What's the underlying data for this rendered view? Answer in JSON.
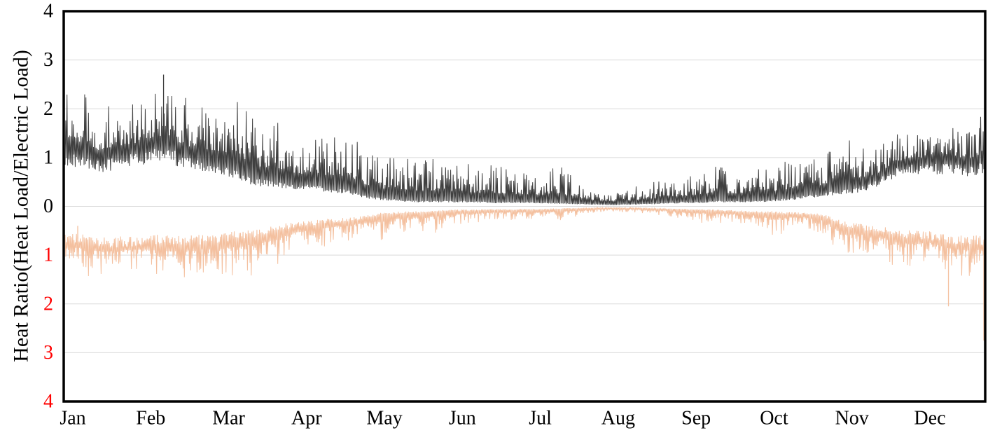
{
  "chart_data": {
    "type": "line",
    "title": "",
    "xlabel": "",
    "ylabel": "Heat Ratio(Heat Load/Electric Load)",
    "x_tick_labels": [
      "Jan",
      "Feb",
      "Mar",
      "Apr",
      "May",
      "Jun",
      "Jul",
      "Aug",
      "Sep",
      "Oct",
      "Nov",
      "Dec"
    ],
    "y_ticks_upper": [
      "4",
      "3",
      "2",
      "1",
      "0"
    ],
    "y_ticks_lower": [
      "1",
      "2",
      "3",
      "4"
    ],
    "ylim_upper": [
      0,
      4
    ],
    "ylim_lower": [
      0,
      4
    ],
    "lower_axis_inverted": true,
    "grid": "horizontal",
    "legend": "none",
    "colors": {
      "upper_series": "#404040",
      "lower_series": "#F4C09F",
      "upper_tick_labels": "#000000",
      "lower_tick_labels": "#FF0000",
      "gridline": "#D9D9D9",
      "frame": "#000000"
    },
    "x": [
      "Jan 1",
      "Jan 8",
      "Jan 15",
      "Jan 22",
      "Jan 29",
      "Feb 5",
      "Feb 12",
      "Feb 19",
      "Feb 26",
      "Mar 5",
      "Mar 12",
      "Mar 19",
      "Mar 26",
      "Apr 2",
      "Apr 9",
      "Apr 16",
      "Apr 23",
      "Apr 30",
      "May 7",
      "May 14",
      "May 21",
      "May 28",
      "Jun 4",
      "Jun 11",
      "Jun 18",
      "Jun 25",
      "Jul 2",
      "Jul 9",
      "Jul 16",
      "Jul 23",
      "Jul 30",
      "Aug 6",
      "Aug 13",
      "Aug 20",
      "Aug 27",
      "Sep 3",
      "Sep 10",
      "Sep 17",
      "Sep 24",
      "Oct 1",
      "Oct 8",
      "Oct 15",
      "Oct 22",
      "Oct 29",
      "Nov 5",
      "Nov 12",
      "Nov 19",
      "Nov 26",
      "Dec 3",
      "Dec 10",
      "Dec 17",
      "Dec 24",
      "Dec 31"
    ],
    "series": [
      {
        "axis": "upper",
        "low": [
          1.0,
          0.95,
          0.85,
          0.9,
          1.0,
          1.1,
          1.05,
          0.9,
          0.85,
          0.75,
          0.6,
          0.5,
          0.45,
          0.4,
          0.4,
          0.35,
          0.3,
          0.2,
          0.15,
          0.12,
          0.1,
          0.1,
          0.1,
          0.1,
          0.08,
          0.08,
          0.08,
          0.07,
          0.06,
          0.05,
          0.04,
          0.03,
          0.04,
          0.05,
          0.06,
          0.08,
          0.08,
          0.1,
          0.1,
          0.1,
          0.12,
          0.15,
          0.2,
          0.25,
          0.3,
          0.35,
          0.5,
          0.7,
          0.8,
          0.8,
          0.8,
          0.75,
          0.8
        ],
        "high": [
          2.3,
          2.45,
          2.0,
          2.2,
          2.2,
          2.35,
          2.35,
          2.2,
          2.1,
          2.25,
          2.1,
          1.75,
          1.8,
          1.4,
          1.6,
          1.45,
          1.6,
          1.2,
          1.0,
          1.05,
          1.0,
          1.0,
          0.95,
          0.85,
          0.85,
          0.8,
          0.75,
          0.75,
          0.85,
          0.55,
          0.4,
          0.3,
          0.4,
          0.45,
          0.6,
          0.6,
          0.75,
          0.85,
          0.75,
          0.85,
          0.9,
          0.95,
          0.95,
          1.05,
          1.45,
          1.25,
          1.2,
          1.5,
          1.6,
          1.55,
          1.85,
          1.6,
          1.9
        ],
        "spikes": [
          {
            "x": "Feb 9",
            "y": 2.7
          }
        ]
      },
      {
        "axis": "lower",
        "low": [
          0.7,
          0.65,
          0.75,
          0.75,
          0.75,
          0.7,
          0.7,
          0.7,
          0.7,
          0.65,
          0.6,
          0.55,
          0.45,
          0.4,
          0.35,
          0.3,
          0.28,
          0.22,
          0.15,
          0.13,
          0.12,
          0.1,
          0.08,
          0.08,
          0.07,
          0.07,
          0.06,
          0.06,
          0.05,
          0.04,
          0.03,
          0.03,
          0.03,
          0.04,
          0.05,
          0.06,
          0.07,
          0.08,
          0.1,
          0.12,
          0.12,
          0.14,
          0.15,
          0.2,
          0.37,
          0.44,
          0.5,
          0.55,
          0.6,
          0.62,
          0.68,
          0.72,
          0.72
        ],
        "high": [
          1.25,
          1.45,
          1.4,
          1.35,
          1.3,
          1.45,
          1.6,
          1.5,
          1.4,
          1.45,
          1.5,
          1.35,
          1.3,
          0.95,
          0.9,
          0.8,
          0.75,
          0.7,
          0.75,
          0.6,
          0.55,
          0.55,
          0.4,
          0.35,
          0.3,
          0.3,
          0.3,
          0.28,
          0.3,
          0.2,
          0.15,
          0.12,
          0.15,
          0.15,
          0.2,
          0.3,
          0.35,
          0.35,
          0.35,
          0.4,
          0.65,
          0.5,
          0.45,
          0.6,
          1.2,
          1.0,
          0.9,
          1.3,
          1.25,
          1.15,
          1.4,
          1.45,
          1.4
        ],
        "spikes": [
          {
            "x": "Jan 6",
            "y": 0.4
          },
          {
            "x": "Dec 17",
            "y": 2.05
          },
          {
            "x": "Dec 31",
            "y": 2.75
          }
        ]
      }
    ]
  }
}
